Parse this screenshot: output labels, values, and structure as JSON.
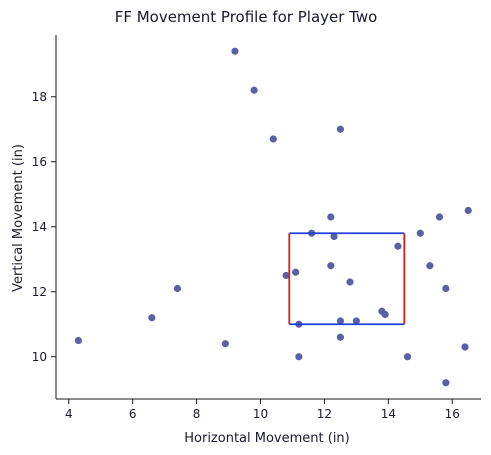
{
  "chart_data": {
    "type": "scatter",
    "title": "FF Movement Profile for Player Two",
    "xlabel": "Horizontal Movement (in)",
    "ylabel": "Vertical Movement (in)",
    "xlim": [
      3.6,
      16.9
    ],
    "ylim": [
      8.7,
      19.9
    ],
    "xticks": [
      4,
      6,
      8,
      10,
      12,
      14,
      16
    ],
    "yticks": [
      10,
      12,
      14,
      16,
      18
    ],
    "grid": false,
    "point_color": "#5b5fa6",
    "points": [
      {
        "x": 4.3,
        "y": 10.5
      },
      {
        "x": 6.6,
        "y": 11.2
      },
      {
        "x": 7.4,
        "y": 12.1
      },
      {
        "x": 8.9,
        "y": 10.4
      },
      {
        "x": 9.2,
        "y": 19.4
      },
      {
        "x": 9.8,
        "y": 18.2
      },
      {
        "x": 10.4,
        "y": 16.7
      },
      {
        "x": 10.8,
        "y": 12.5
      },
      {
        "x": 11.1,
        "y": 12.6
      },
      {
        "x": 11.2,
        "y": 11.0
      },
      {
        "x": 11.2,
        "y": 10.0
      },
      {
        "x": 11.6,
        "y": 13.8
      },
      {
        "x": 12.2,
        "y": 14.3
      },
      {
        "x": 12.2,
        "y": 12.8
      },
      {
        "x": 12.3,
        "y": 13.7
      },
      {
        "x": 12.5,
        "y": 17.0
      },
      {
        "x": 12.5,
        "y": 11.1
      },
      {
        "x": 12.5,
        "y": 10.6
      },
      {
        "x": 12.8,
        "y": 12.3
      },
      {
        "x": 13.0,
        "y": 11.1
      },
      {
        "x": 13.8,
        "y": 11.4
      },
      {
        "x": 13.9,
        "y": 11.3
      },
      {
        "x": 14.3,
        "y": 13.4
      },
      {
        "x": 14.6,
        "y": 10.0
      },
      {
        "x": 15.0,
        "y": 13.8
      },
      {
        "x": 15.3,
        "y": 12.8
      },
      {
        "x": 15.6,
        "y": 14.3
      },
      {
        "x": 15.8,
        "y": 12.1
      },
      {
        "x": 15.8,
        "y": 9.2
      },
      {
        "x": 16.4,
        "y": 10.3
      },
      {
        "x": 16.5,
        "y": 14.5
      }
    ],
    "box": {
      "x_min": 10.9,
      "x_max": 14.5,
      "y_min": 11.0,
      "y_max": 13.8,
      "horizontal_color": "#1f3fd6",
      "vertical_color": "#e31b1b"
    }
  }
}
